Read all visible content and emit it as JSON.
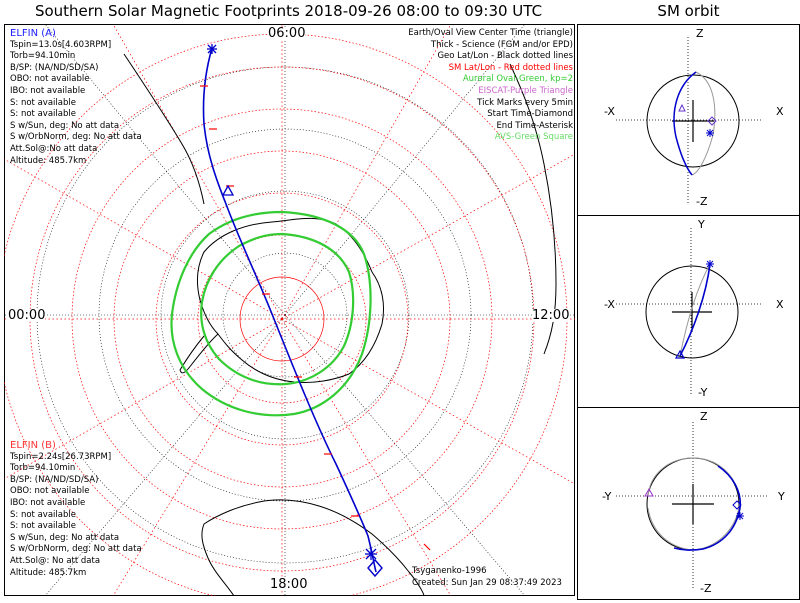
{
  "title": "Southern Solar Magnetic Footprints 2018-09-26 08:00 to 09:30 UTC",
  "orbit_title": "SM orbit",
  "clock_labels": {
    "top": "06:00",
    "left": "00:00",
    "right": "12:00",
    "bottom": "18:00"
  },
  "elfin_a": {
    "header": "ELFIN (A)",
    "lines": [
      "Tspin=13.0s[4.603RPM]",
      "Torb=94.10min",
      "B/SP: (NA/ND/SD/SA)",
      "OBO: not available",
      "IBO: not available",
      "S: not available",
      "S: not available",
      "S w/Sun, deg: No att data",
      "S w/OrbNorm, deg: No att data",
      "Att.Sol@:No att data",
      "Altitude: 485.7km"
    ]
  },
  "elfin_b": {
    "header": "ELFIN (B)",
    "lines": [
      "Tspin=2.24s[26.73RPM]",
      "Torb=94.10min",
      "B/SP: (NA/ND/SD/SA)",
      "OBO: not available",
      "IBO: not available",
      "S: not available",
      "S: not available",
      "S w/Sun, deg: No att data",
      "S w/OrbNorm, deg: No att data",
      "Att.Sol@: No att data",
      "Altitude: 485.7km"
    ]
  },
  "legend": [
    {
      "text": "Earth/Oval View Center Time (triangle)",
      "color": "#000000"
    },
    {
      "text": "Thick - Science (FGM and/or EPD)",
      "color": "#000000"
    },
    {
      "text": "Geo Lat/Lon - Black dotted lines",
      "color": "#000000"
    },
    {
      "text": "SM Lat/Lon - Red dotted lines",
      "color": "#ff0000"
    },
    {
      "text": "Auroral Oval-Green, kp=2",
      "color": "#33cc33"
    },
    {
      "text": "EISCAT-Purple Triangle",
      "color": "#cc66cc"
    },
    {
      "text": "Tick Marks every 5min",
      "color": "#000000"
    },
    {
      "text": "Start Time-Diamond",
      "color": "#000000"
    },
    {
      "text": "End Time-Asterisk",
      "color": "#000000"
    },
    {
      "text": "AVS-Green Square",
      "color": "#66dd66"
    }
  ],
  "credits": {
    "model": "Tsyganenko-1996",
    "created": "Created: Sun Jan 29 08:37:49 2023"
  },
  "orbit_panels": [
    {
      "top": "Z",
      "bottom": "-Z",
      "left": "-X",
      "right": "X"
    },
    {
      "top": "Y",
      "bottom": "-Y",
      "left": "-X",
      "right": "X"
    },
    {
      "top": "Z",
      "bottom": "-Z",
      "left": "-Y",
      "right": "Y"
    }
  ],
  "colors": {
    "track": "#0000cc",
    "oval": "#33cc33",
    "sm_grid": "#ff0000",
    "geo_grid": "#000000",
    "orbit_gray": "#999999"
  }
}
